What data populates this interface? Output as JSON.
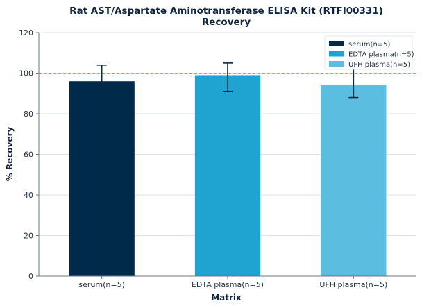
{
  "chart_data": {
    "type": "bar",
    "title": "Rat AST/Aspartate Aminotransferase ELISA Kit (RTFI00331)",
    "subtitle": "Recovery",
    "xlabel": "Matrix",
    "ylabel": "% Recovery",
    "categories": [
      "serum(n=5)",
      "EDTA plasma(n=5)",
      "UFH plasma(n=5)"
    ],
    "values": [
      96,
      99,
      94
    ],
    "error_low": [
      95.5,
      91,
      88
    ],
    "error_high": [
      104,
      105,
      102
    ],
    "colors": [
      "#002a4a",
      "#1fa3d1",
      "#5bbde0"
    ],
    "ylim": [
      0,
      120
    ],
    "yticks": [
      0,
      20,
      40,
      60,
      80,
      100,
      120
    ],
    "reference_line": 100,
    "reference_color": "#5bbde0",
    "grid": true,
    "legend_position": "top-right",
    "legend": [
      "serum(n=5)",
      "EDTA plasma(n=5)",
      "UFH plasma(n=5)"
    ]
  }
}
